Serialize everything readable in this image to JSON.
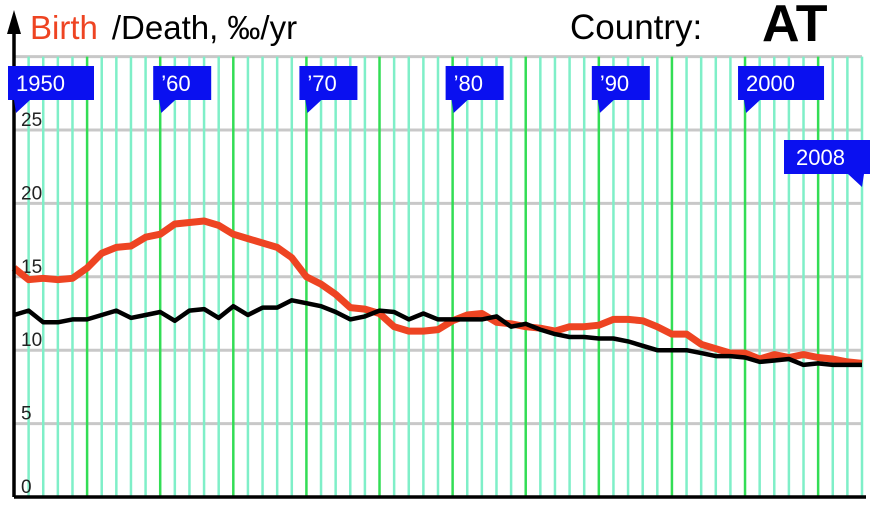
{
  "title": {
    "birth": "Birth",
    "rest": "/Death, ‰/yr",
    "country_label": "Country:",
    "country_code": "AT"
  },
  "chart_data": {
    "type": "line",
    "title": "Birth /Death, ‰/yr",
    "xlabel": "",
    "ylabel": "‰/yr",
    "xlim": [
      1950,
      2008
    ],
    "ylim": [
      0,
      30
    ],
    "yticks": [
      0,
      5,
      10,
      15,
      20,
      25
    ],
    "year_flags": [
      {
        "year": 1950,
        "label": "1950"
      },
      {
        "year": 1960,
        "label": "’60"
      },
      {
        "year": 1970,
        "label": "’70"
      },
      {
        "year": 1980,
        "label": "’80"
      },
      {
        "year": 1990,
        "label": "’90"
      },
      {
        "year": 2000,
        "label": "2000"
      },
      {
        "year": 2008,
        "label": "2008"
      }
    ],
    "grid": true,
    "x": [
      1950,
      1951,
      1952,
      1953,
      1954,
      1955,
      1956,
      1957,
      1958,
      1959,
      1960,
      1961,
      1962,
      1963,
      1964,
      1965,
      1966,
      1967,
      1968,
      1969,
      1970,
      1971,
      1972,
      1973,
      1974,
      1975,
      1976,
      1977,
      1978,
      1979,
      1980,
      1981,
      1982,
      1983,
      1984,
      1985,
      1986,
      1987,
      1988,
      1989,
      1990,
      1991,
      1992,
      1993,
      1994,
      1995,
      1996,
      1997,
      1998,
      1999,
      2000,
      2001,
      2002,
      2003,
      2004,
      2005,
      2006,
      2007,
      2008
    ],
    "series": [
      {
        "name": "Birth",
        "color": "#ee4422",
        "values": [
          15.6,
          14.8,
          14.9,
          14.8,
          14.9,
          15.6,
          16.6,
          17.0,
          17.1,
          17.7,
          17.9,
          18.6,
          18.7,
          18.8,
          18.5,
          17.9,
          17.6,
          17.3,
          17.0,
          16.3,
          15.0,
          14.5,
          13.8,
          12.9,
          12.8,
          12.5,
          11.6,
          11.3,
          11.3,
          11.4,
          12.0,
          12.4,
          12.5,
          11.9,
          11.8,
          11.6,
          11.5,
          11.3,
          11.6,
          11.6,
          11.7,
          12.1,
          12.1,
          12.0,
          11.6,
          11.1,
          11.1,
          10.4,
          10.1,
          9.8,
          9.8,
          9.4,
          9.7,
          9.5,
          9.7,
          9.5,
          9.4,
          9.2,
          9.1
        ]
      },
      {
        "name": "Death",
        "color": "#000000",
        "values": [
          12.4,
          12.7,
          11.9,
          11.9,
          12.1,
          12.1,
          12.4,
          12.7,
          12.2,
          12.4,
          12.6,
          12.0,
          12.7,
          12.8,
          12.2,
          13.0,
          12.4,
          12.9,
          12.9,
          13.4,
          13.2,
          13.0,
          12.6,
          12.1,
          12.3,
          12.7,
          12.6,
          12.1,
          12.5,
          12.1,
          12.1,
          12.1,
          12.1,
          12.3,
          11.6,
          11.8,
          11.4,
          11.1,
          10.9,
          10.9,
          10.8,
          10.8,
          10.6,
          10.3,
          10.0,
          10.0,
          10.0,
          9.8,
          9.6,
          9.6,
          9.5,
          9.2,
          9.3,
          9.4,
          9.0,
          9.1,
          9.0,
          9.0,
          9.0
        ]
      }
    ],
    "colors": {
      "flag": "#0a10f0",
      "grid_year": "#7fefc8",
      "grid_5yr": "#33dd55",
      "grid_h": "#c8c8c8"
    }
  }
}
